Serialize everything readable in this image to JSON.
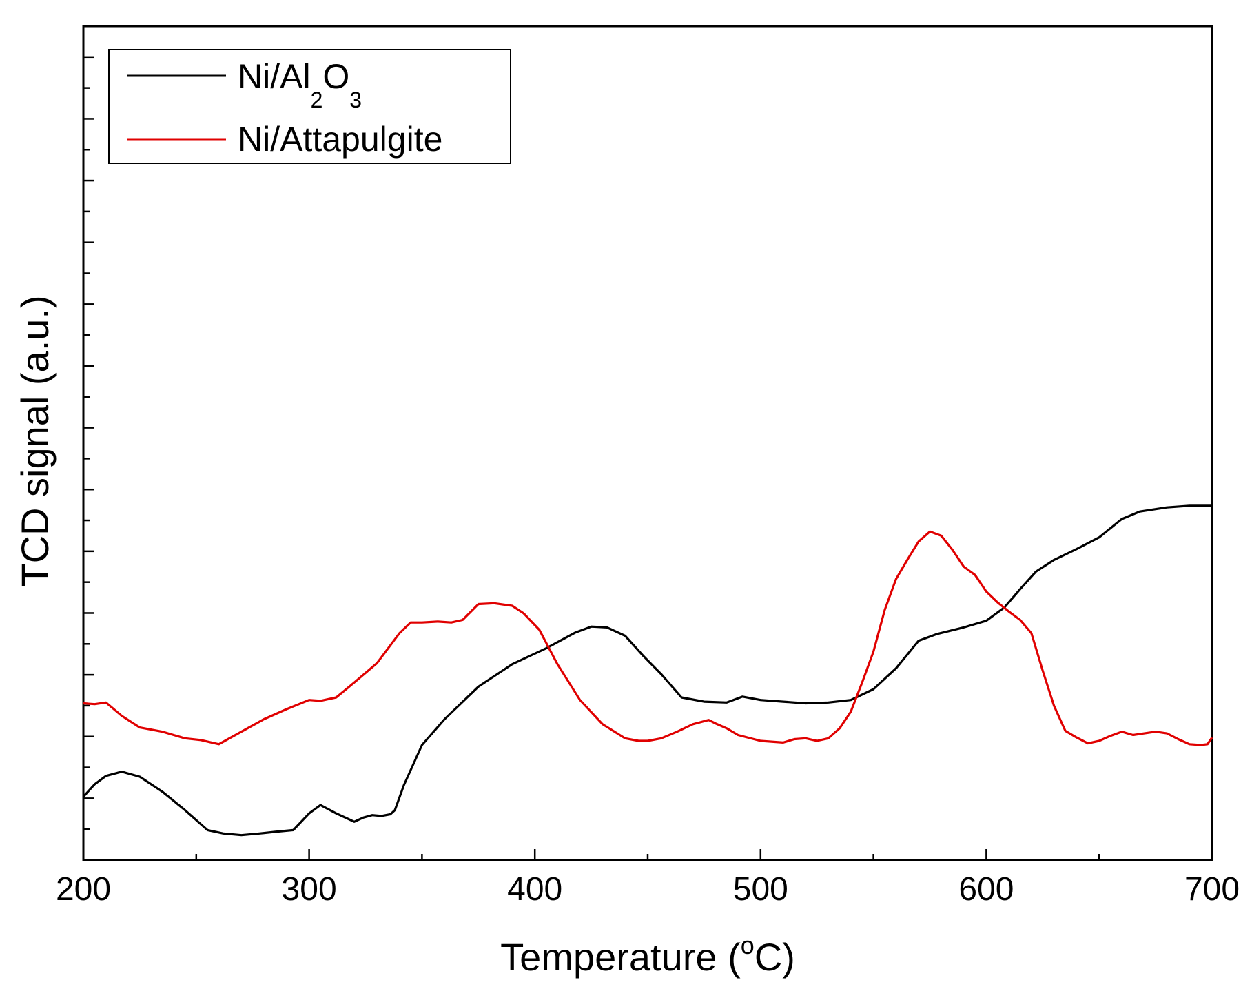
{
  "chart_data": {
    "type": "line",
    "title": "",
    "xlabel": "Temperature (oC)",
    "xlabel_parts": {
      "main": "Temperature (",
      "superscript": "o",
      "tail": "C)"
    },
    "ylabel": "TCD signal (a.u.)",
    "xlim": [
      200,
      700
    ],
    "ylim": [
      0,
      100
    ],
    "x_ticks": [
      200,
      300,
      400,
      500,
      600,
      700
    ],
    "x_tick_labels": [
      "200",
      "300",
      "400",
      "500",
      "600",
      "700"
    ],
    "y_tick_labels_shown": false,
    "grid": false,
    "legend_position": "top-left",
    "legend": [
      {
        "name": "Ni/Al2O3",
        "parts": {
          "main": "Ni/Al",
          "sub1": "2",
          "mid": "O",
          "sub2": "3"
        }
      },
      {
        "name": "Ni/Attapulgite"
      }
    ],
    "series": [
      {
        "name": "Ni/Al2O3",
        "color": "#000000",
        "x": [
          200,
          205,
          210,
          217,
          225,
          235,
          245,
          255,
          262,
          270,
          278,
          285,
          293,
          300,
          305,
          312,
          320,
          324,
          328,
          332,
          336,
          338,
          342,
          350,
          360,
          375,
          390,
          405,
          418,
          425,
          432,
          440,
          448,
          456,
          465,
          475,
          485,
          492,
          500,
          510,
          520,
          530,
          540,
          550,
          560,
          570,
          578,
          590,
          600,
          608,
          615,
          622,
          630,
          640,
          650,
          660,
          668,
          680,
          690,
          700
        ],
        "y": [
          7.6,
          9.1,
          10.1,
          10.6,
          10.0,
          8.2,
          6.0,
          3.6,
          3.2,
          3.0,
          3.2,
          3.4,
          3.6,
          5.6,
          6.6,
          5.6,
          4.6,
          5.1,
          5.4,
          5.3,
          5.5,
          6.0,
          9.0,
          13.8,
          16.9,
          20.8,
          23.5,
          25.4,
          27.3,
          28.0,
          27.9,
          26.9,
          24.5,
          22.3,
          19.5,
          19.0,
          18.9,
          19.6,
          19.2,
          19.0,
          18.8,
          18.9,
          19.2,
          20.5,
          23.0,
          26.3,
          27.1,
          27.9,
          28.7,
          30.3,
          32.5,
          34.6,
          36.0,
          37.3,
          38.7,
          40.9,
          41.8,
          42.3,
          42.5,
          42.5
        ]
      },
      {
        "name": "Ni/Attapulgite",
        "color": "#e00000",
        "x": [
          200,
          205,
          210,
          217,
          225,
          235,
          245,
          252,
          260,
          270,
          280,
          290,
          300,
          305,
          312,
          320,
          330,
          340,
          345,
          350,
          357,
          363,
          368,
          375,
          382,
          390,
          395,
          402,
          410,
          420,
          430,
          440,
          446,
          450,
          456,
          463,
          470,
          477,
          480,
          485,
          490,
          500,
          510,
          515,
          520,
          525,
          530,
          535,
          540,
          545,
          550,
          555,
          560,
          565,
          570,
          575,
          580,
          585,
          590,
          595,
          600,
          605,
          610,
          615,
          620,
          625,
          630,
          635,
          640,
          645,
          650,
          655,
          660,
          665,
          670,
          675,
          680,
          685,
          690,
          695,
          698,
          700
        ],
        "y": [
          18.8,
          18.7,
          18.9,
          17.3,
          15.9,
          15.4,
          14.6,
          14.4,
          13.9,
          15.4,
          16.9,
          18.1,
          19.2,
          19.1,
          19.5,
          21.3,
          23.6,
          27.2,
          28.5,
          28.5,
          28.6,
          28.5,
          28.8,
          30.7,
          30.8,
          30.5,
          29.6,
          27.6,
          23.5,
          19.2,
          16.3,
          14.6,
          14.3,
          14.3,
          14.6,
          15.4,
          16.3,
          16.8,
          16.4,
          15.8,
          15.0,
          14.3,
          14.1,
          14.5,
          14.6,
          14.3,
          14.6,
          15.8,
          17.8,
          21.3,
          25.0,
          30.0,
          33.7,
          36.0,
          38.2,
          39.4,
          38.9,
          37.2,
          35.2,
          34.2,
          32.2,
          30.9,
          29.8,
          28.8,
          27.2,
          22.7,
          18.5,
          15.5,
          14.7,
          14.0,
          14.3,
          14.9,
          15.4,
          15.0,
          15.2,
          15.4,
          15.2,
          14.5,
          13.9,
          13.8,
          13.9,
          14.7
        ]
      }
    ]
  }
}
